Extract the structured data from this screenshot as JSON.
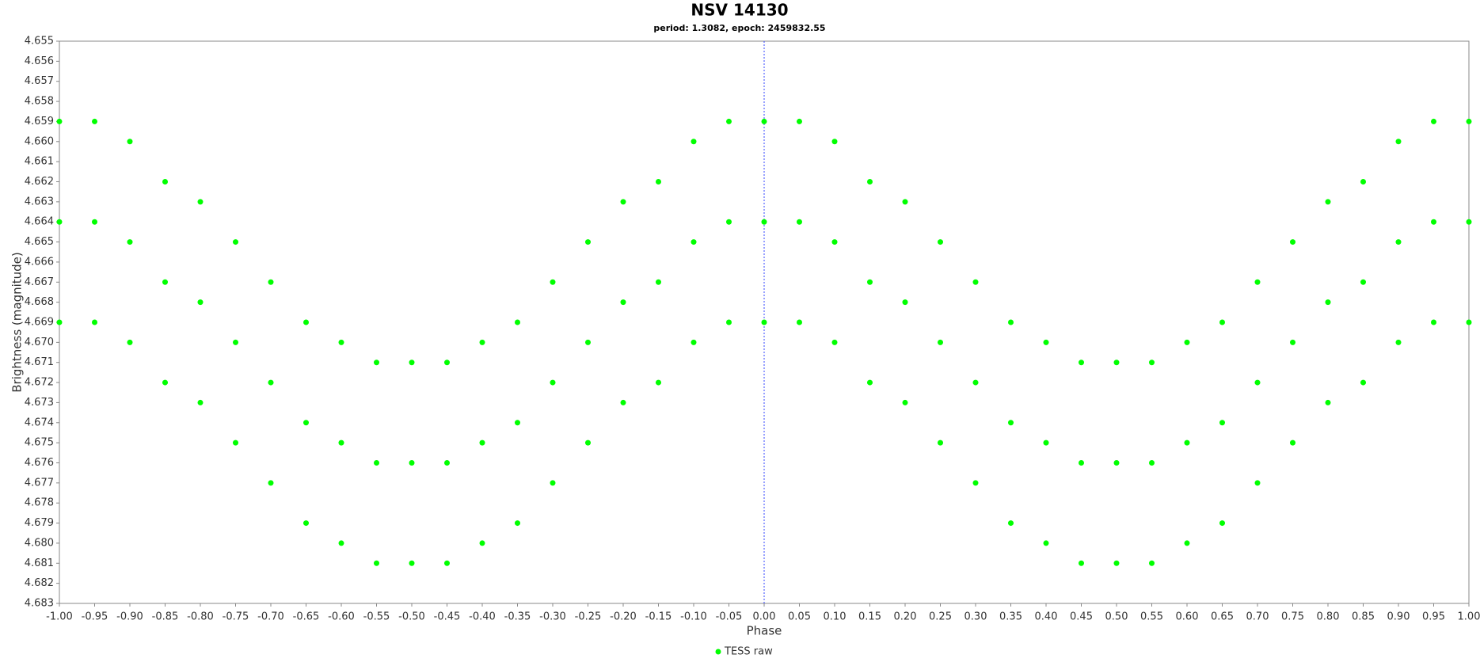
{
  "chart_data": {
    "type": "scatter",
    "title": "NSV 14130",
    "subtitle": "period: 1.3082, epoch: 2459832.55",
    "x_label": "Phase",
    "y_label": "Brightness (magnitude)",
    "xlim": [
      -1,
      1
    ],
    "ylim": [
      4.655,
      4.683
    ],
    "y_inverted": true,
    "legend": "bottom",
    "xticks": [
      {
        "value": -1,
        "label": "-1.00"
      },
      -0.95,
      {
        "value": -0.9,
        "label": "-0.90"
      },
      -0.85,
      {
        "value": -0.8,
        "label": "-0.80"
      },
      -0.75,
      {
        "value": -0.7,
        "label": "-0.70"
      },
      -0.65,
      {
        "value": -0.6,
        "label": "-0.60"
      },
      -0.55,
      {
        "value": -0.5,
        "label": "-0.50"
      },
      -0.45,
      {
        "value": -0.4,
        "label": "-0.40"
      },
      -0.35,
      {
        "value": -0.3,
        "label": "-0.30"
      },
      -0.25,
      {
        "value": -0.2,
        "label": "-0.20"
      },
      -0.15,
      {
        "value": -0.1,
        "label": "-0.10"
      },
      -0.05,
      {
        "value": 0,
        "label": "0.00"
      },
      0.05,
      {
        "value": 0.1,
        "label": "0.10"
      },
      0.15,
      {
        "value": 0.2,
        "label": "0.20"
      },
      0.25,
      {
        "value": 0.3,
        "label": "0.30"
      },
      0.35,
      {
        "value": 0.4,
        "label": "0.40"
      },
      0.45,
      {
        "value": 0.5,
        "label": "0.50"
      },
      0.55,
      {
        "value": 0.6,
        "label": "0.60"
      },
      0.65,
      {
        "value": 0.7,
        "label": "0.70"
      },
      0.75,
      {
        "value": 0.8,
        "label": "0.80"
      },
      0.85,
      {
        "value": 0.9,
        "label": "0.90"
      },
      0.95,
      {
        "value": 1,
        "label": "1.00"
      }
    ],
    "yticks": [
      4.655,
      4.656,
      4.657,
      4.658,
      4.659,
      {
        "value": 4.66,
        "label": "4.660"
      },
      4.661,
      4.662,
      4.663,
      4.664,
      4.665,
      4.666,
      4.667,
      4.668,
      4.669,
      {
        "value": 4.67,
        "label": "4.670"
      },
      4.671,
      4.672,
      4.673,
      4.674,
      4.675,
      4.676,
      4.677,
      4.678,
      4.679,
      {
        "value": 4.68,
        "label": "4.680"
      },
      4.681,
      4.682,
      4.683
    ],
    "series": [
      {
        "name": "TESS raw",
        "color": "#00ff00",
        "x": [
          -1,
          -1,
          -1,
          -0.95,
          -0.95,
          -0.95,
          -0.9,
          -0.9,
          -0.9,
          -0.85,
          -0.85,
          -0.85,
          -0.8,
          -0.8,
          -0.8,
          -0.75,
          -0.75,
          -0.75,
          -0.7,
          -0.7,
          -0.7,
          -0.65,
          -0.65,
          -0.65,
          -0.6,
          -0.6,
          -0.6,
          -0.55,
          -0.55,
          -0.55,
          -0.5,
          -0.5,
          -0.5,
          -0.45,
          -0.45,
          -0.45,
          -0.4,
          -0.4,
          -0.4,
          -0.35,
          -0.35,
          -0.35,
          -0.3,
          -0.3,
          -0.3,
          -0.25,
          -0.25,
          -0.25,
          -0.2,
          -0.2,
          -0.2,
          -0.15,
          -0.15,
          -0.15,
          -0.1,
          -0.1,
          -0.1,
          -0.05,
          -0.05,
          -0.05,
          0,
          0,
          0,
          0.05,
          0.05,
          0.05,
          0.1,
          0.1,
          0.1,
          0.15,
          0.15,
          0.15,
          0.2,
          0.2,
          0.2,
          0.25,
          0.25,
          0.25,
          0.3,
          0.3,
          0.3,
          0.35,
          0.35,
          0.35,
          0.4,
          0.4,
          0.4,
          0.45,
          0.45,
          0.45,
          0.5,
          0.5,
          0.5,
          0.55,
          0.55,
          0.55,
          0.6,
          0.6,
          0.6,
          0.65,
          0.65,
          0.65,
          0.7,
          0.7,
          0.7,
          0.75,
          0.75,
          0.75,
          0.8,
          0.8,
          0.8,
          0.85,
          0.85,
          0.85,
          0.9,
          0.9,
          0.9,
          0.95,
          0.95,
          0.95,
          1,
          1,
          1
        ],
        "values": [
          4.659,
          4.664,
          4.669,
          4.659,
          4.664,
          4.669,
          4.66,
          4.665,
          4.67,
          4.662,
          4.667,
          4.672,
          4.663,
          4.668,
          4.673,
          4.665,
          4.67,
          4.675,
          4.667,
          4.672,
          4.677,
          4.669,
          4.674,
          4.679,
          4.67,
          4.675,
          4.68,
          4.671,
          4.676,
          4.681,
          4.671,
          4.676,
          4.681,
          4.671,
          4.676,
          4.681,
          4.67,
          4.675,
          4.68,
          4.669,
          4.674,
          4.679,
          4.667,
          4.672,
          4.677,
          4.665,
          4.67,
          4.675,
          4.663,
          4.668,
          4.673,
          4.662,
          4.667,
          4.672,
          4.66,
          4.665,
          4.67,
          4.659,
          4.664,
          4.669,
          4.659,
          4.664,
          4.669,
          4.659,
          4.664,
          4.669,
          4.66,
          4.665,
          4.67,
          4.662,
          4.667,
          4.672,
          4.663,
          4.668,
          4.673,
          4.665,
          4.67,
          4.675,
          4.667,
          4.672,
          4.677,
          4.669,
          4.674,
          4.679,
          4.67,
          4.675,
          4.68,
          4.671,
          4.676,
          4.681,
          4.671,
          4.676,
          4.681,
          4.671,
          4.676,
          4.681,
          4.67,
          4.675,
          4.68,
          4.669,
          4.674,
          4.679,
          4.667,
          4.672,
          4.677,
          4.665,
          4.67,
          4.675,
          4.663,
          4.668,
          4.673,
          4.662,
          4.667,
          4.672,
          4.66,
          4.665,
          4.67,
          4.659,
          4.664,
          4.669,
          4.659,
          4.664,
          4.669
        ]
      }
    ]
  }
}
